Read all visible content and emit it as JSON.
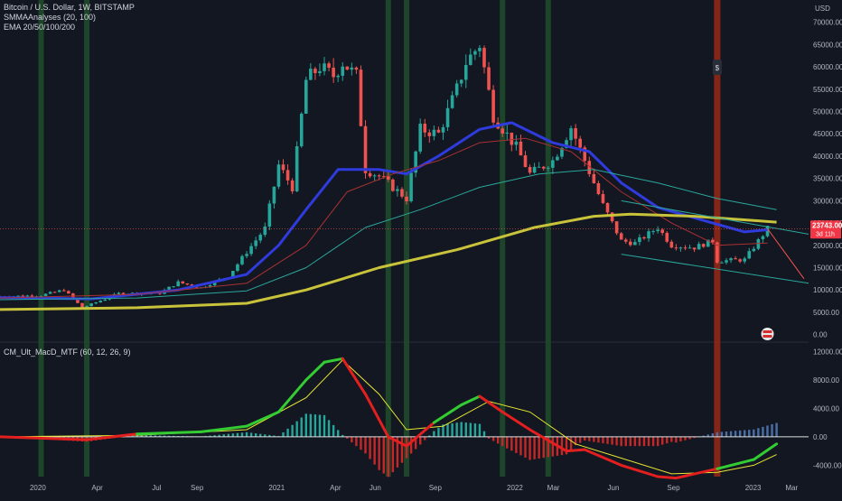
{
  "header": {
    "symbol_line": "Bitcoin / U.S. Dollar, 1W, BITSTAMP",
    "indicator_1": "SMMAAnalyses (20, 100)",
    "indicator_2": "EMA 20/50/100/200",
    "macd_title": "CM_Ult_MacD_MTF (60, 12, 26, 9)",
    "currency": "USD"
  },
  "colors": {
    "background": "#131722",
    "bull": "#26a69a",
    "bear": "#ef5350",
    "ema_blue": "#2f3bdc",
    "ema_yellow": "#c8c33a",
    "ema_teal": "#2aa79b",
    "ema_red": "#a83232",
    "macd_green": "#33cc33",
    "macd_red": "#e31f1f",
    "signal": "#e6e633",
    "hist_pos": "#26a69a",
    "hist_neg": "#c62828",
    "green_band": "#1f4d2a",
    "red_band": "#8b2618"
  },
  "chart_data": [
    {
      "type": "candlestick",
      "title": "Bitcoin / U.S. Dollar, 1W, BITSTAMP",
      "y_axis": {
        "unit": "USD",
        "ylim": [
          -1500,
          75000
        ],
        "ticks": [
          0,
          5000,
          10000,
          15000,
          20000,
          25000,
          30000,
          35000,
          40000,
          45000,
          50000,
          55000,
          60000,
          65000,
          70000
        ],
        "tick_labels": [
          "0.00",
          "5000.00",
          "10000.00",
          "15000.00",
          "20000.00",
          "25000.00",
          "30000.00",
          "35000.00",
          "40000.00",
          "45000.00",
          "50000.00",
          "55000.00",
          "60000.00",
          "65000.00",
          "70000.00"
        ]
      },
      "x_axis": {
        "range": [
          "2019-11-04",
          "2023-03-27"
        ],
        "ticks": [
          {
            "date": "2020-01-01",
            "label": "2020"
          },
          {
            "date": "2020-04-01",
            "label": "Apr"
          },
          {
            "date": "2020-07-01",
            "label": "Jul"
          },
          {
            "date": "2020-09-01",
            "label": "Sep"
          },
          {
            "date": "2021-01-01",
            "label": "2021"
          },
          {
            "date": "2021-04-01",
            "label": "Apr"
          },
          {
            "date": "2021-06-01",
            "label": "Jun"
          },
          {
            "date": "2021-09-01",
            "label": "Sep"
          },
          {
            "date": "2022-01-01",
            "label": "2022"
          },
          {
            "date": "2022-03-01",
            "label": "Mar"
          },
          {
            "date": "2022-06-01",
            "label": "Jun"
          },
          {
            "date": "2022-09-01",
            "label": "Sep"
          },
          {
            "date": "2023-01-01",
            "label": "2023"
          },
          {
            "date": "2023-03-01",
            "label": "Mar"
          }
        ]
      },
      "close_path": [
        {
          "date": "2019-11-04",
          "close": 8500
        },
        {
          "date": "2020-01-06",
          "close": 8800
        },
        {
          "date": "2020-02-10",
          "close": 10000
        },
        {
          "date": "2020-03-09",
          "close": 6000
        },
        {
          "date": "2020-03-23",
          "close": 6800
        },
        {
          "date": "2020-05-04",
          "close": 9200
        },
        {
          "date": "2020-07-06",
          "close": 9300
        },
        {
          "date": "2020-08-03",
          "close": 11700
        },
        {
          "date": "2020-09-07",
          "close": 10500
        },
        {
          "date": "2020-10-19",
          "close": 13100
        },
        {
          "date": "2020-11-16",
          "close": 18500
        },
        {
          "date": "2020-12-14",
          "close": 23800
        },
        {
          "date": "2021-01-04",
          "close": 38000
        },
        {
          "date": "2021-01-25",
          "close": 33000
        },
        {
          "date": "2021-02-15",
          "close": 57000
        },
        {
          "date": "2021-03-08",
          "close": 60000
        },
        {
          "date": "2021-03-29",
          "close": 58000
        },
        {
          "date": "2021-04-12",
          "close": 61000
        },
        {
          "date": "2021-05-03",
          "close": 58000
        },
        {
          "date": "2021-05-17",
          "close": 37000
        },
        {
          "date": "2021-06-07",
          "close": 35500
        },
        {
          "date": "2021-07-19",
          "close": 30500
        },
        {
          "date": "2021-08-09",
          "close": 46000
        },
        {
          "date": "2021-09-06",
          "close": 45000
        },
        {
          "date": "2021-10-04",
          "close": 55000
        },
        {
          "date": "2021-10-18",
          "close": 61000
        },
        {
          "date": "2021-11-08",
          "close": 65000
        },
        {
          "date": "2021-11-29",
          "close": 49000
        },
        {
          "date": "2022-01-03",
          "close": 42000
        },
        {
          "date": "2022-01-24",
          "close": 36000
        },
        {
          "date": "2022-02-28",
          "close": 39000
        },
        {
          "date": "2022-03-28",
          "close": 46500
        },
        {
          "date": "2022-05-02",
          "close": 34000
        },
        {
          "date": "2022-05-16",
          "close": 29000
        },
        {
          "date": "2022-06-13",
          "close": 21000
        },
        {
          "date": "2022-07-04",
          "close": 20500
        },
        {
          "date": "2022-08-08",
          "close": 24000
        },
        {
          "date": "2022-08-29",
          "close": 20000
        },
        {
          "date": "2022-10-03",
          "close": 19500
        },
        {
          "date": "2022-10-31",
          "close": 21000
        },
        {
          "date": "2022-11-07",
          "close": 16500
        },
        {
          "date": "2022-12-19",
          "close": 16800
        },
        {
          "date": "2023-01-09",
          "close": 21000
        },
        {
          "date": "2023-01-23",
          "close": 23743
        }
      ],
      "last_price": {
        "value": 23743.0,
        "label": "23743.00",
        "countdown": "3d 11h"
      },
      "series": [
        {
          "name": "EMA 20",
          "style": "thick blue line"
        },
        {
          "name": "EMA 200",
          "style": "thick yellow line"
        },
        {
          "name": "EMA 100",
          "style": "thin teal line"
        },
        {
          "name": "EMA 50",
          "style": "thin red line"
        }
      ],
      "series_values": [
        {
          "color": "#2f3bdc",
          "points": [
            {
              "date": "2019-11-04",
              "value": 8300
            },
            {
              "date": "2020-03-23",
              "value": 8000
            },
            {
              "date": "2020-08-03",
              "value": 10000
            },
            {
              "date": "2020-11-16",
              "value": 13500
            },
            {
              "date": "2021-01-04",
              "value": 20000
            },
            {
              "date": "2021-02-15",
              "value": 28000
            },
            {
              "date": "2021-04-05",
              "value": 37000
            },
            {
              "date": "2021-06-07",
              "value": 37000
            },
            {
              "date": "2021-07-19",
              "value": 36000
            },
            {
              "date": "2021-09-06",
              "value": 40000
            },
            {
              "date": "2021-11-08",
              "value": 46000
            },
            {
              "date": "2021-12-27",
              "value": 47500
            },
            {
              "date": "2022-02-28",
              "value": 43000
            },
            {
              "date": "2022-04-25",
              "value": 41000
            },
            {
              "date": "2022-06-13",
              "value": 34000
            },
            {
              "date": "2022-08-08",
              "value": 28500
            },
            {
              "date": "2022-10-31",
              "value": 25000
            },
            {
              "date": "2022-12-19",
              "value": 23000
            },
            {
              "date": "2023-01-23",
              "value": 23500
            }
          ]
        },
        {
          "color": "#a83232",
          "points": [
            {
              "date": "2019-11-04",
              "value": 8200
            },
            {
              "date": "2020-06-01",
              "value": 9000
            },
            {
              "date": "2020-11-16",
              "value": 11500
            },
            {
              "date": "2021-02-15",
              "value": 20000
            },
            {
              "date": "2021-04-19",
              "value": 32000
            },
            {
              "date": "2021-06-28",
              "value": 36000
            },
            {
              "date": "2021-09-06",
              "value": 39000
            },
            {
              "date": "2021-11-08",
              "value": 43000
            },
            {
              "date": "2022-01-17",
              "value": 44000
            },
            {
              "date": "2022-03-28",
              "value": 41000
            },
            {
              "date": "2022-06-13",
              "value": 32000
            },
            {
              "date": "2022-08-29",
              "value": 25000
            },
            {
              "date": "2022-11-07",
              "value": 20000
            },
            {
              "date": "2023-01-23",
              "value": 20500
            }
          ]
        },
        {
          "color": "#2aa79b",
          "points": [
            {
              "date": "2019-11-04",
              "value": 7800
            },
            {
              "date": "2020-06-01",
              "value": 8200
            },
            {
              "date": "2020-11-16",
              "value": 9800
            },
            {
              "date": "2021-02-15",
              "value": 15000
            },
            {
              "date": "2021-05-17",
              "value": 24000
            },
            {
              "date": "2021-08-09",
              "value": 28000
            },
            {
              "date": "2021-11-08",
              "value": 33000
            },
            {
              "date": "2022-02-07",
              "value": 36000
            },
            {
              "date": "2022-05-02",
              "value": 37000
            },
            {
              "date": "2022-08-08",
              "value": 34000
            },
            {
              "date": "2022-11-07",
              "value": 30500
            },
            {
              "date": "2023-02-06",
              "value": 28000
            }
          ]
        },
        {
          "color": "#c8c33a",
          "points": [
            {
              "date": "2019-11-04",
              "value": 5600
            },
            {
              "date": "2020-06-01",
              "value": 6000
            },
            {
              "date": "2020-11-16",
              "value": 7000
            },
            {
              "date": "2021-02-15",
              "value": 10000
            },
            {
              "date": "2021-06-07",
              "value": 15000
            },
            {
              "date": "2021-10-04",
              "value": 19000
            },
            {
              "date": "2022-01-31",
              "value": 24000
            },
            {
              "date": "2022-05-02",
              "value": 26500
            },
            {
              "date": "2022-06-27",
              "value": 27000
            },
            {
              "date": "2022-10-03",
              "value": 26500
            },
            {
              "date": "2023-01-09",
              "value": 25500
            },
            {
              "date": "2023-02-06",
              "value": 25200
            }
          ]
        }
      ],
      "trend_lines": [
        {
          "color": "#2aa79b",
          "from": {
            "date": "2022-06-13",
            "value": 30000
          },
          "to": {
            "date": "2023-03-27",
            "value": 22500
          }
        },
        {
          "color": "#2aa79b",
          "from": {
            "date": "2022-06-13",
            "value": 18000
          },
          "to": {
            "date": "2023-03-27",
            "value": 11500
          }
        },
        {
          "color": "#ef5350",
          "from": {
            "date": "2023-01-23",
            "value": 23743
          },
          "to": {
            "date": "2023-03-20",
            "value": 12500
          }
        }
      ],
      "vertical_bands": [
        {
          "color": "green",
          "date": "2020-01-06"
        },
        {
          "color": "green",
          "date": "2020-03-16"
        },
        {
          "color": "green",
          "date": "2021-06-21"
        },
        {
          "color": "green",
          "date": "2021-07-19"
        },
        {
          "color": "green",
          "date": "2021-12-13"
        },
        {
          "color": "green",
          "date": "2022-02-21"
        },
        {
          "color": "red",
          "date": "2022-11-07"
        }
      ],
      "markers": [
        {
          "type": "dividend",
          "label": "$",
          "date": "2022-11-07"
        },
        {
          "type": "earnings-flag",
          "date": "2023-01-23"
        }
      ]
    },
    {
      "type": "macd",
      "title": "CM_Ult_MacD_MTF (60, 12, 26, 9)",
      "y_axis": {
        "ylim": [
          -5600,
          13200
        ],
        "ticks": [
          -4000,
          0,
          4000,
          8000,
          12000
        ],
        "tick_labels": [
          "-4000.00",
          "0.00",
          "4000.00",
          "8000.00",
          "12000.00"
        ]
      },
      "macd_line": [
        {
          "date": "2019-11-04",
          "value": 0
        },
        {
          "date": "2020-03-16",
          "value": -400
        },
        {
          "date": "2020-06-01",
          "value": 400
        },
        {
          "date": "2020-09-07",
          "value": 700
        },
        {
          "date": "2020-11-16",
          "value": 1500
        },
        {
          "date": "2021-01-04",
          "value": 3500
        },
        {
          "date": "2021-02-15",
          "value": 8000
        },
        {
          "date": "2021-03-15",
          "value": 10500
        },
        {
          "date": "2021-04-12",
          "value": 11000
        },
        {
          "date": "2021-05-17",
          "value": 6000
        },
        {
          "date": "2021-06-21",
          "value": 0
        },
        {
          "date": "2021-07-19",
          "value": -1300
        },
        {
          "date": "2021-08-30",
          "value": 2000
        },
        {
          "date": "2021-10-11",
          "value": 4500
        },
        {
          "date": "2021-11-08",
          "value": 5700
        },
        {
          "date": "2021-12-13",
          "value": 3500
        },
        {
          "date": "2022-01-24",
          "value": 1000
        },
        {
          "date": "2022-03-21",
          "value": -2000
        },
        {
          "date": "2022-04-18",
          "value": -1800
        },
        {
          "date": "2022-06-13",
          "value": -4000
        },
        {
          "date": "2022-08-08",
          "value": -5600
        },
        {
          "date": "2022-09-05",
          "value": -5800
        },
        {
          "date": "2022-11-07",
          "value": -4500
        },
        {
          "date": "2023-01-02",
          "value": -3200
        },
        {
          "date": "2023-02-06",
          "value": -1000
        }
      ],
      "signal_line": [
        {
          "date": "2019-11-04",
          "value": 0
        },
        {
          "date": "2020-06-01",
          "value": 200
        },
        {
          "date": "2020-11-16",
          "value": 1000
        },
        {
          "date": "2021-02-15",
          "value": 5500
        },
        {
          "date": "2021-04-12",
          "value": 10800
        },
        {
          "date": "2021-06-07",
          "value": 6000
        },
        {
          "date": "2021-07-19",
          "value": 1000
        },
        {
          "date": "2021-09-13",
          "value": 1500
        },
        {
          "date": "2021-11-22",
          "value": 5000
        },
        {
          "date": "2022-01-24",
          "value": 3500
        },
        {
          "date": "2022-04-04",
          "value": -1000
        },
        {
          "date": "2022-06-13",
          "value": -3000
        },
        {
          "date": "2022-08-29",
          "value": -5200
        },
        {
          "date": "2022-11-07",
          "value": -5000
        },
        {
          "date": "2023-01-02",
          "value": -4000
        },
        {
          "date": "2023-02-06",
          "value": -2500
        }
      ]
    }
  ]
}
